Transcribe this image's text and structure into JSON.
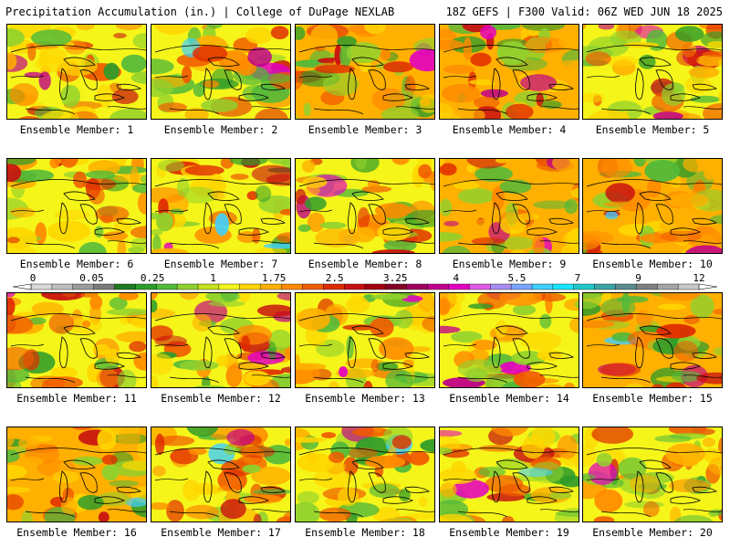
{
  "header": {
    "left": "Precipitation Accumulation (in.) | College of DuPage NEXLAB",
    "right": "18Z GEFS | F300 Valid: 06Z WED JUN 18 2025"
  },
  "colorbar": {
    "tick_labels": [
      "0",
      "0.05",
      "0.25",
      "1",
      "1.75",
      "2.5",
      "3.25",
      "4",
      "5.5",
      "7",
      "9",
      "12"
    ],
    "colors": [
      "#d9d9d9",
      "#bfbfbf",
      "#9c9c9c",
      "#7a7a7a",
      "#1e7a1e",
      "#2f9c2a",
      "#52b93a",
      "#8fd12e",
      "#c6e21c",
      "#f5f51a",
      "#ffd600",
      "#ffb000",
      "#ff8a00",
      "#f05a00",
      "#e02a00",
      "#c81010",
      "#a00010",
      "#820026",
      "#9e0060",
      "#c0008a",
      "#e400c0",
      "#e05ae6",
      "#a88cf0",
      "#7aa6ff",
      "#3fd0ff",
      "#18e6ff",
      "#20c8c8",
      "#3aa4a4",
      "#5a8c8c",
      "#808080",
      "#a4a4a4",
      "#c8c8c8"
    ]
  },
  "panels": [
    {
      "label": "Ensemble Member: 1"
    },
    {
      "label": "Ensemble Member: 2"
    },
    {
      "label": "Ensemble Member: 3"
    },
    {
      "label": "Ensemble Member: 4"
    },
    {
      "label": "Ensemble Member: 5"
    },
    {
      "label": "Ensemble Member: 6"
    },
    {
      "label": "Ensemble Member: 7"
    },
    {
      "label": "Ensemble Member: 8"
    },
    {
      "label": "Ensemble Member: 9"
    },
    {
      "label": "Ensemble Member: 10"
    },
    {
      "label": "Ensemble Member: 11"
    },
    {
      "label": "Ensemble Member: 12"
    },
    {
      "label": "Ensemble Member: 13"
    },
    {
      "label": "Ensemble Member: 14"
    },
    {
      "label": "Ensemble Member: 15"
    },
    {
      "label": "Ensemble Member: 16"
    },
    {
      "label": "Ensemble Member: 17"
    },
    {
      "label": "Ensemble Member: 18"
    },
    {
      "label": "Ensemble Member: 19"
    },
    {
      "label": "Ensemble Member: 20"
    }
  ]
}
